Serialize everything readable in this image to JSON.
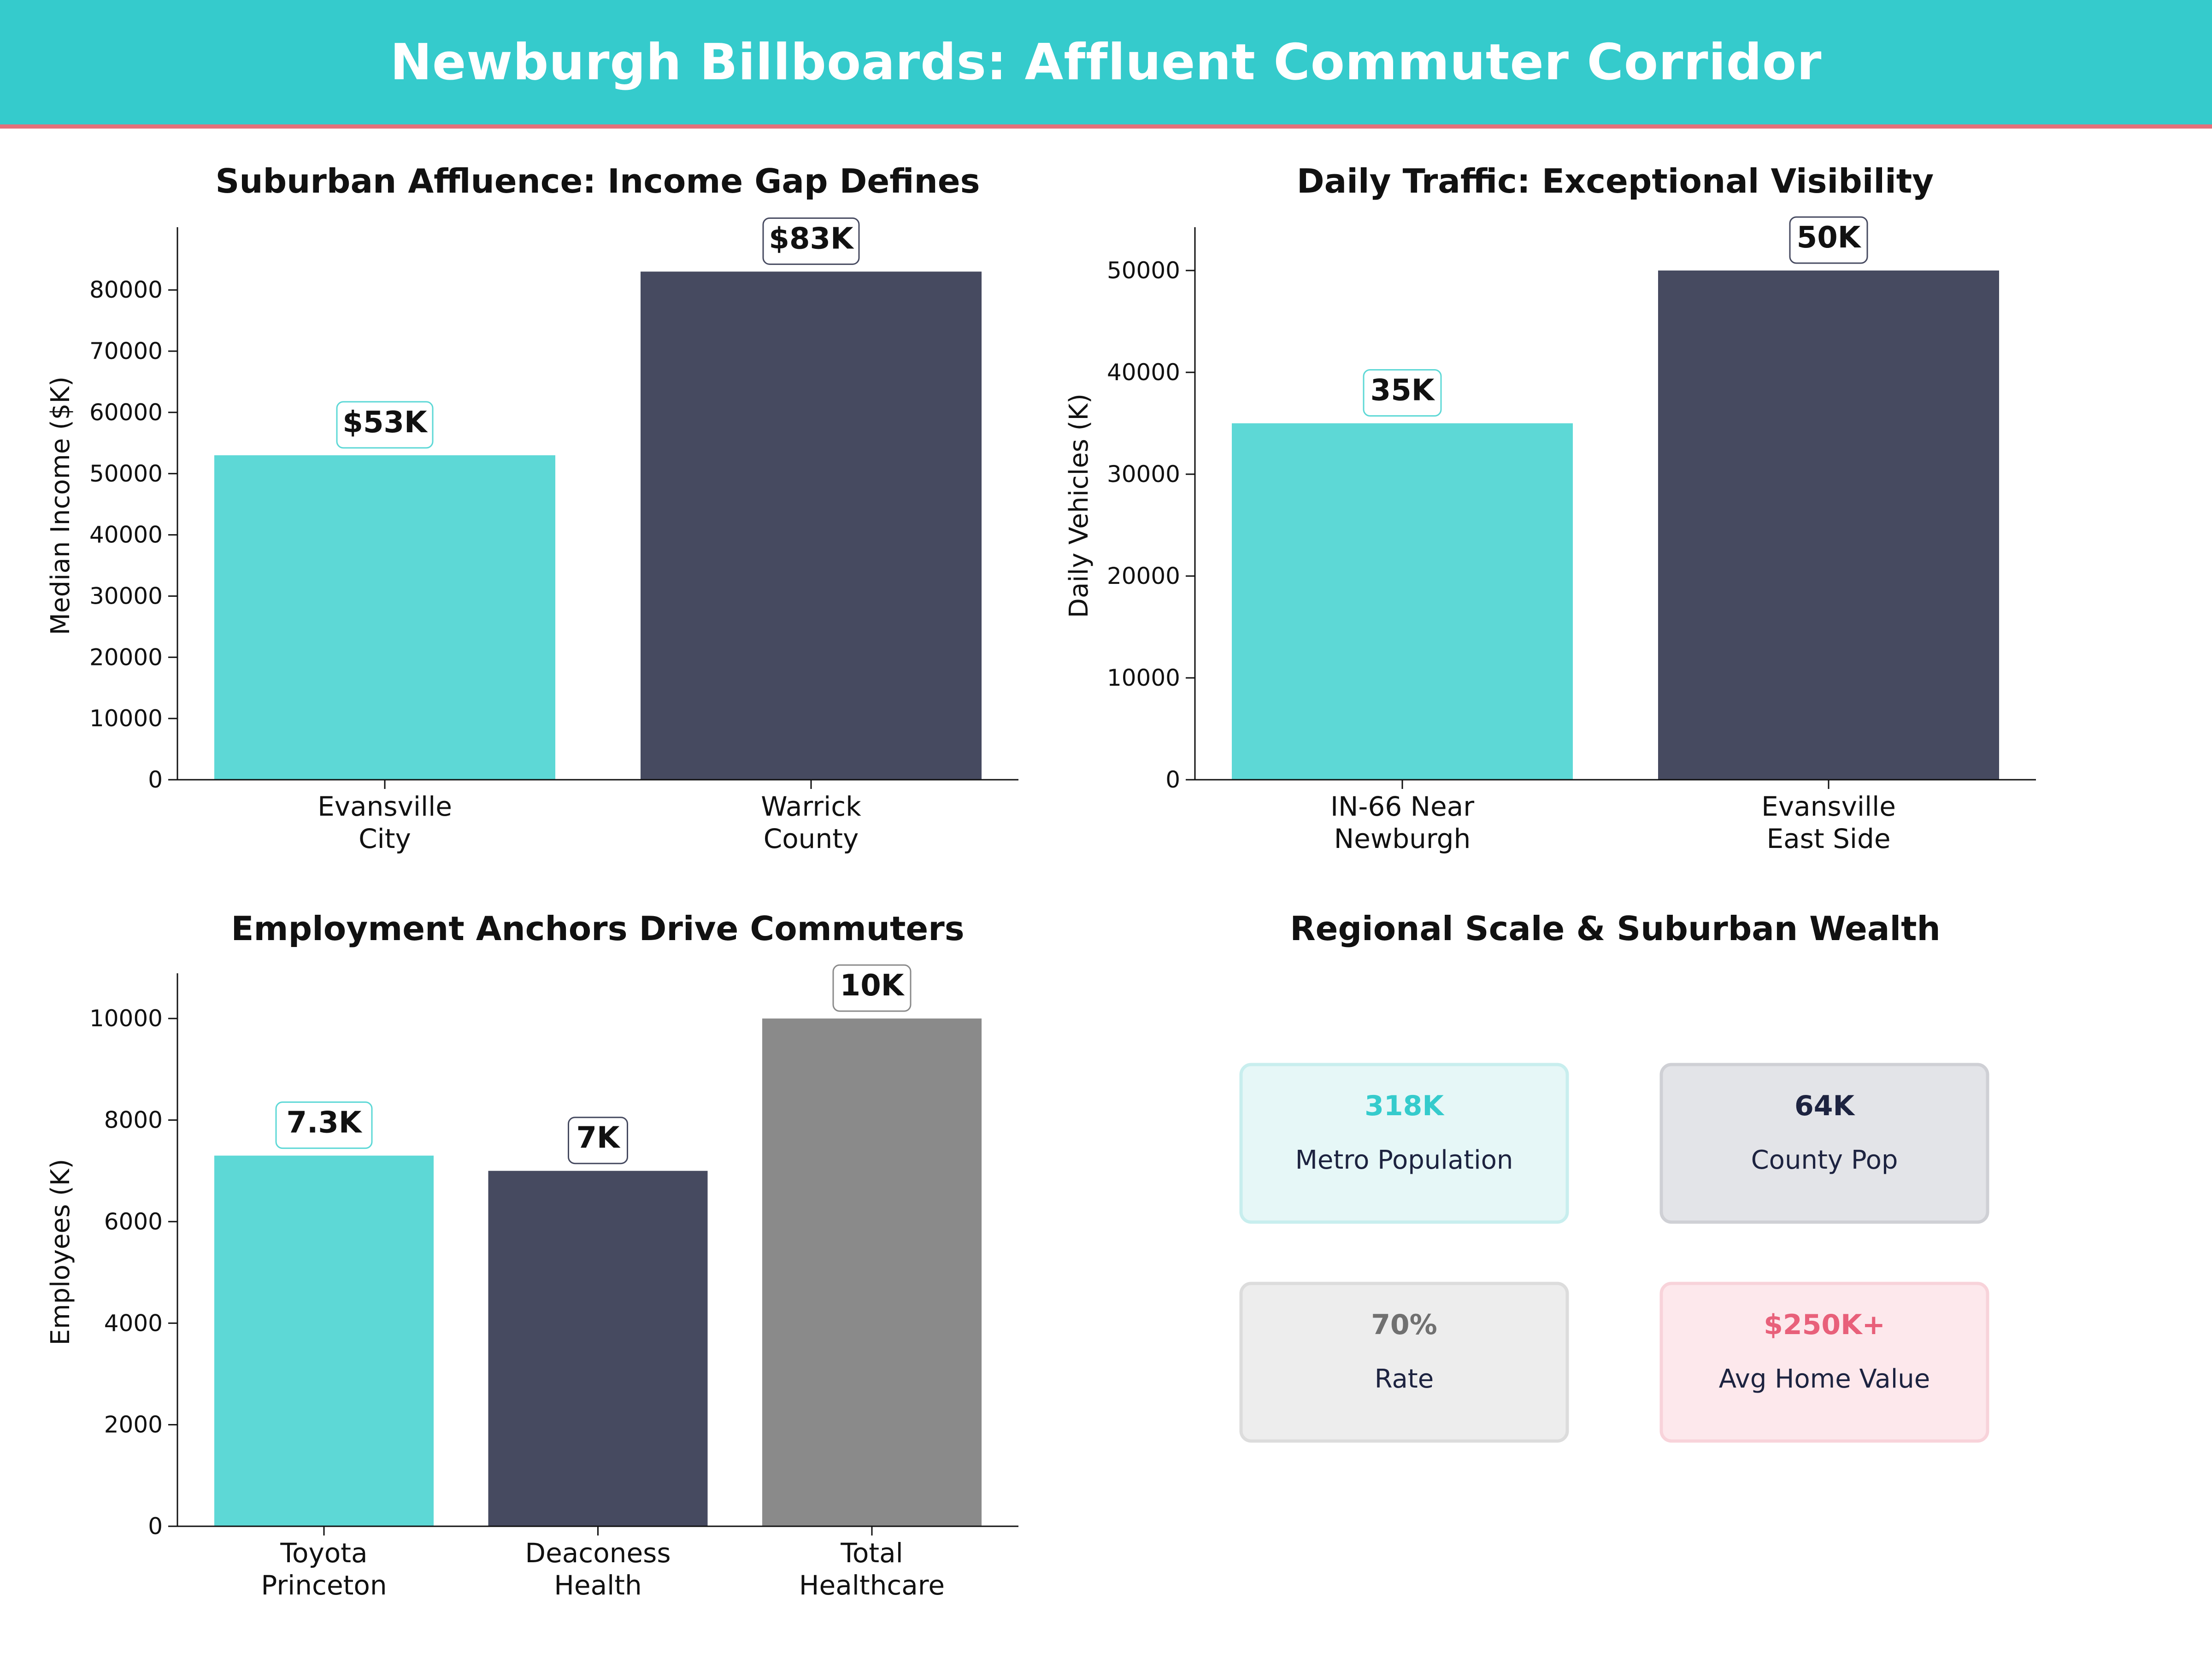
{
  "header": {
    "title": "Newburgh Billboards: Affluent Commuter Corridor"
  },
  "colors": {
    "header_bg": "#35cbcc",
    "header_rule": "#e4707a",
    "teal": "#5dd8d6",
    "navy": "#464a60",
    "gray": "#8a8a8a"
  },
  "chart_data": [
    {
      "type": "bar",
      "title": "Suburban Affluence: Income Gap Defines",
      "xlabel": "",
      "ylabel": "Median Income ($K)",
      "categories": [
        [
          "Evansville",
          "City"
        ],
        [
          "Warrick",
          "County"
        ]
      ],
      "values": [
        53000,
        83000
      ],
      "data_labels": [
        "$53K",
        "$83K"
      ],
      "bar_colors": [
        "#5dd8d6",
        "#464a60"
      ],
      "label_box_colors": [
        "#5dd8d6",
        "#464a60"
      ],
      "yticks": [
        0,
        10000,
        20000,
        30000,
        40000,
        50000,
        60000,
        70000,
        80000
      ],
      "ylim": [
        0,
        89500
      ]
    },
    {
      "type": "bar",
      "title": "Daily Traffic: Exceptional Visibility",
      "xlabel": "",
      "ylabel": "Daily Vehicles (K)",
      "categories": [
        [
          "IN-66 Near",
          "Newburgh"
        ],
        [
          "Evansville",
          "East Side"
        ]
      ],
      "values": [
        35000,
        50000
      ],
      "data_labels": [
        "35K",
        "50K"
      ],
      "bar_colors": [
        "#5dd8d6",
        "#464a60"
      ],
      "label_box_colors": [
        "#5dd8d6",
        "#464a60"
      ],
      "yticks": [
        0,
        10000,
        20000,
        30000,
        40000,
        50000
      ],
      "ylim": [
        0,
        53800
      ]
    },
    {
      "type": "bar",
      "title": "Employment Anchors Drive Commuters",
      "xlabel": "",
      "ylabel": "Employees (K)",
      "categories": [
        [
          "Toyota",
          "Princeton"
        ],
        [
          "Deaconess",
          "Health"
        ],
        [
          "Total",
          "Healthcare"
        ]
      ],
      "values": [
        7300,
        7000,
        10000
      ],
      "data_labels": [
        "7.3K",
        "7K",
        "10K"
      ],
      "bar_colors": [
        "#5dd8d6",
        "#464a60",
        "#8a8a8a"
      ],
      "label_box_colors": [
        "#5dd8d6",
        "#464a60",
        "#8a8a8a"
      ],
      "yticks": [
        0,
        2000,
        4000,
        6000,
        8000,
        10000
      ],
      "ylim": [
        0,
        10800
      ]
    }
  ],
  "kpi_panel": {
    "title": "Regional Scale & Suburban Wealth",
    "cards": [
      {
        "value": "318K",
        "label": "Metro Population",
        "value_color": "#35cbcc",
        "bg": "#e6f7f7",
        "border": "#c8eeee"
      },
      {
        "value": "64K",
        "label": "County Pop",
        "value_color": "#1d2340",
        "bg": "#e3e4e8",
        "border": "#cfd0d5"
      },
      {
        "value": "70%",
        "label": "Rate",
        "value_color": "#707070",
        "bg": "#ededed",
        "border": "#dcdcdc"
      },
      {
        "value": "$250K+",
        "label": "Avg Home Value",
        "value_color": "#e8607a",
        "bg": "#fde8ec",
        "border": "#f8d3da"
      }
    ]
  }
}
